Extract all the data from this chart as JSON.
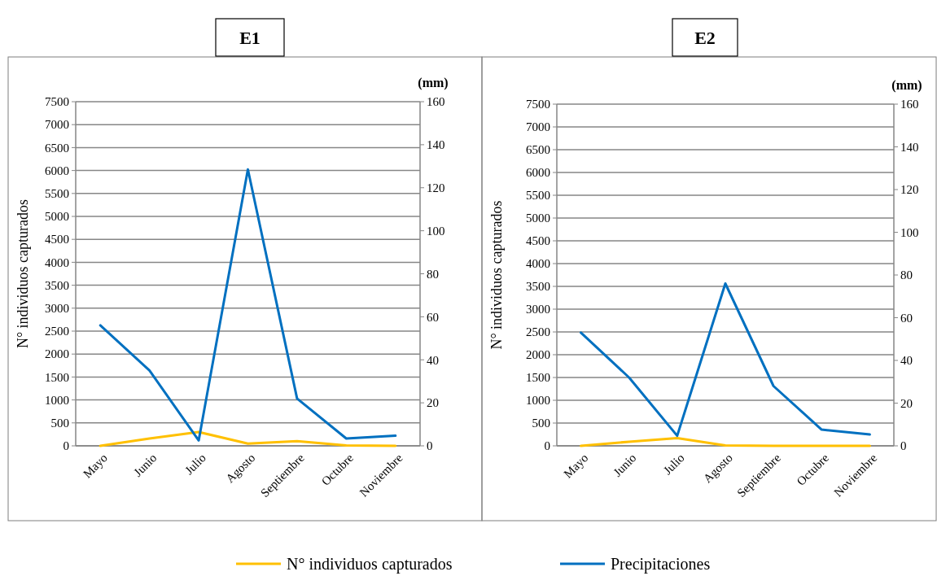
{
  "chart_data": [
    {
      "type": "line",
      "title": "E1",
      "ylabel": "N° individuos capturados",
      "y2label": "(mm)",
      "categories": [
        "Mayo",
        "Junio",
        "Julio",
        "Agosto",
        "Septiembre",
        "Octubre",
        "Noviembre"
      ],
      "series": [
        {
          "name": "N° individuos capturados",
          "color": "#ffc000",
          "values": [
            0,
            160,
            300,
            50,
            100,
            10,
            0
          ]
        },
        {
          "name": "Precipitaciones",
          "color": "#0070c0",
          "axis": "y2",
          "values": [
            56,
            35,
            2.5,
            128.5,
            22,
            3.4,
            4.7
          ]
        }
      ],
      "ylim": [
        0,
        7500
      ],
      "yticks": [
        0,
        500,
        1000,
        1500,
        2000,
        2500,
        3000,
        3500,
        4000,
        4500,
        5000,
        5500,
        6000,
        6500,
        7000,
        7500
      ],
      "y2lim": [
        0,
        160
      ],
      "y2ticks": [
        0,
        20,
        40,
        60,
        80,
        100,
        120,
        140,
        160
      ],
      "grid": "y",
      "legend": "bottom",
      "line_style": "solid",
      "marker": "none"
    },
    {
      "type": "line",
      "title": "E2",
      "ylabel": "N° individuos capturados",
      "y2label": "(mm)",
      "categories": [
        "Mayo",
        "Junio",
        "Julio",
        "Agosto",
        "Septiembre",
        "Octubre",
        "Noviembre"
      ],
      "series": [
        {
          "color": "#ffc000",
          "values": [
            0,
            90,
            170,
            10,
            0,
            0,
            0
          ]
        },
        {
          "color": "#0070c0",
          "axis": "y2",
          "values": [
            53,
            32,
            4.7,
            76,
            28,
            7.6,
            5.3
          ]
        }
      ],
      "ylim": [
        0,
        7500
      ],
      "yticks": [
        0,
        500,
        1000,
        1500,
        2000,
        2500,
        3000,
        3500,
        4000,
        4500,
        5000,
        5500,
        6000,
        6500,
        7000,
        7500
      ],
      "y2lim": [
        0,
        160
      ],
      "y2ticks": [
        0,
        20,
        40,
        60,
        80,
        100,
        120,
        140,
        160
      ],
      "grid": "y",
      "line_style": "solid",
      "marker": "none"
    }
  ]
}
